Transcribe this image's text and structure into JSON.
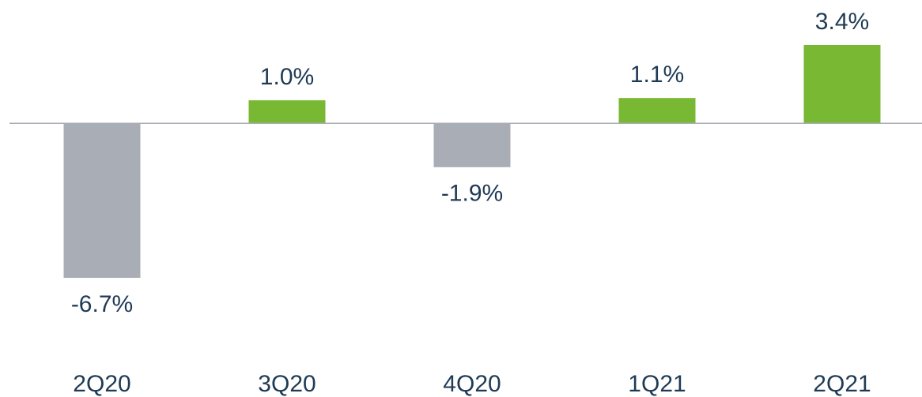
{
  "chart_data": {
    "type": "bar",
    "categories": [
      "2Q20",
      "3Q20",
      "4Q20",
      "1Q21",
      "2Q21"
    ],
    "values": [
      -6.7,
      1.0,
      -1.9,
      1.1,
      3.4
    ],
    "value_labels": [
      "-6.7%",
      "1.0%",
      "-1.9%",
      "1.1%",
      "3.4%"
    ],
    "positive_color": "#78b832",
    "negative_color": "#a9adb5"
  }
}
